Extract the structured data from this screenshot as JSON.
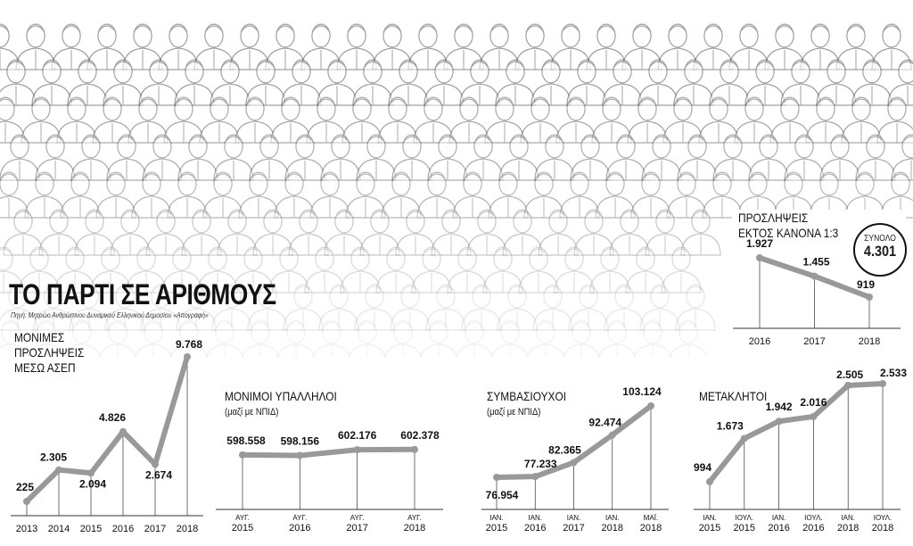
{
  "title": "ΤΟ ΠΑΡΤΙ ΣΕ ΑΡΙΘΜΟΥΣ",
  "source": "Πηγή: Μητρώο Ανθρώπινου Δυναμικού Ελληνικού Δημοσίου «Απογραφή»",
  "colors": {
    "line": "#999999",
    "text": "#111111",
    "axis": "#333333"
  },
  "charts": {
    "asep": {
      "type": "line",
      "title_lines": [
        "ΜΟΝΙΜΕΣ",
        "ΠΡΟΣΛΗΨΕΙΣ",
        "ΜΕΣΩ ΑΣΕΠ"
      ],
      "x": [
        "2013",
        "2014",
        "2015",
        "2016",
        "2017",
        "2018"
      ],
      "values": [
        225,
        2305,
        2094,
        4826,
        2674,
        9768
      ],
      "labels": [
        "225",
        "2.305",
        "2.094",
        "4.826",
        "2.674",
        "9.768"
      ]
    },
    "monimoi": {
      "type": "line",
      "title": "ΜΟΝΙΜΟΙ  ΥΠΑΛΛΗΛΟΙ",
      "subtitle": "(μαζί με ΝΠΙΔ)",
      "x": [
        [
          "ΑΥΓ.",
          "2015"
        ],
        [
          "ΑΥΓ.",
          "2016"
        ],
        [
          "ΑΥΓ.",
          "2017"
        ],
        [
          "ΑΥΓ.",
          "2018"
        ]
      ],
      "values": [
        598558,
        598156,
        602176,
        602378
      ],
      "labels": [
        "598.558",
        "598.156",
        "602.176",
        "602.378"
      ]
    },
    "symvasiouxoi": {
      "type": "line",
      "title": "ΣΥΜΒΑΣΙΟΥΧΟΙ",
      "subtitle": "(μαζί με ΝΠΙΔ)",
      "x": [
        [
          "ΙΑΝ.",
          "2015"
        ],
        [
          "ΙΑΝ.",
          "2016"
        ],
        [
          "ΙΑΝ.",
          "2017"
        ],
        [
          "ΙΑΝ.",
          "2018"
        ],
        [
          "ΜΑΪ.",
          "2018"
        ]
      ],
      "values": [
        76954,
        77233,
        82365,
        92474,
        103124
      ],
      "labels": [
        "76.954",
        "77.233",
        "82.365",
        "92.474",
        "103.124"
      ]
    },
    "metaklitoi": {
      "type": "line",
      "title": "ΜΕΤΑΚΛΗΤΟΙ",
      "x": [
        [
          "ΙΑΝ.",
          "2015"
        ],
        [
          "ΙΟΥΛ.",
          "2015"
        ],
        [
          "ΙΑΝ.",
          "2016"
        ],
        [
          "ΙΟΥΛ.",
          "2016"
        ],
        [
          "ΙΑΝ.",
          "2018"
        ],
        [
          "ΙΟΥΛ.",
          "2018"
        ]
      ],
      "values": [
        994,
        1673,
        1942,
        2016,
        2505,
        2533
      ],
      "labels": [
        "994",
        "1.673",
        "1.942",
        "2.016",
        "2.505",
        "2.533"
      ]
    },
    "ektos": {
      "type": "line",
      "title_lines": [
        "ΠΡΟΣΛΗΨΕΙΣ",
        "ΕΚΤΟΣ ΚΑΝΟΝΑ 1:3"
      ],
      "x": [
        "2016",
        "2017",
        "2018"
      ],
      "values": [
        1927,
        1455,
        919
      ],
      "labels": [
        "1.927",
        "1.455",
        "919"
      ],
      "total_label": "ΣΥΝΟΛΟ",
      "total_value": "4.301"
    }
  }
}
